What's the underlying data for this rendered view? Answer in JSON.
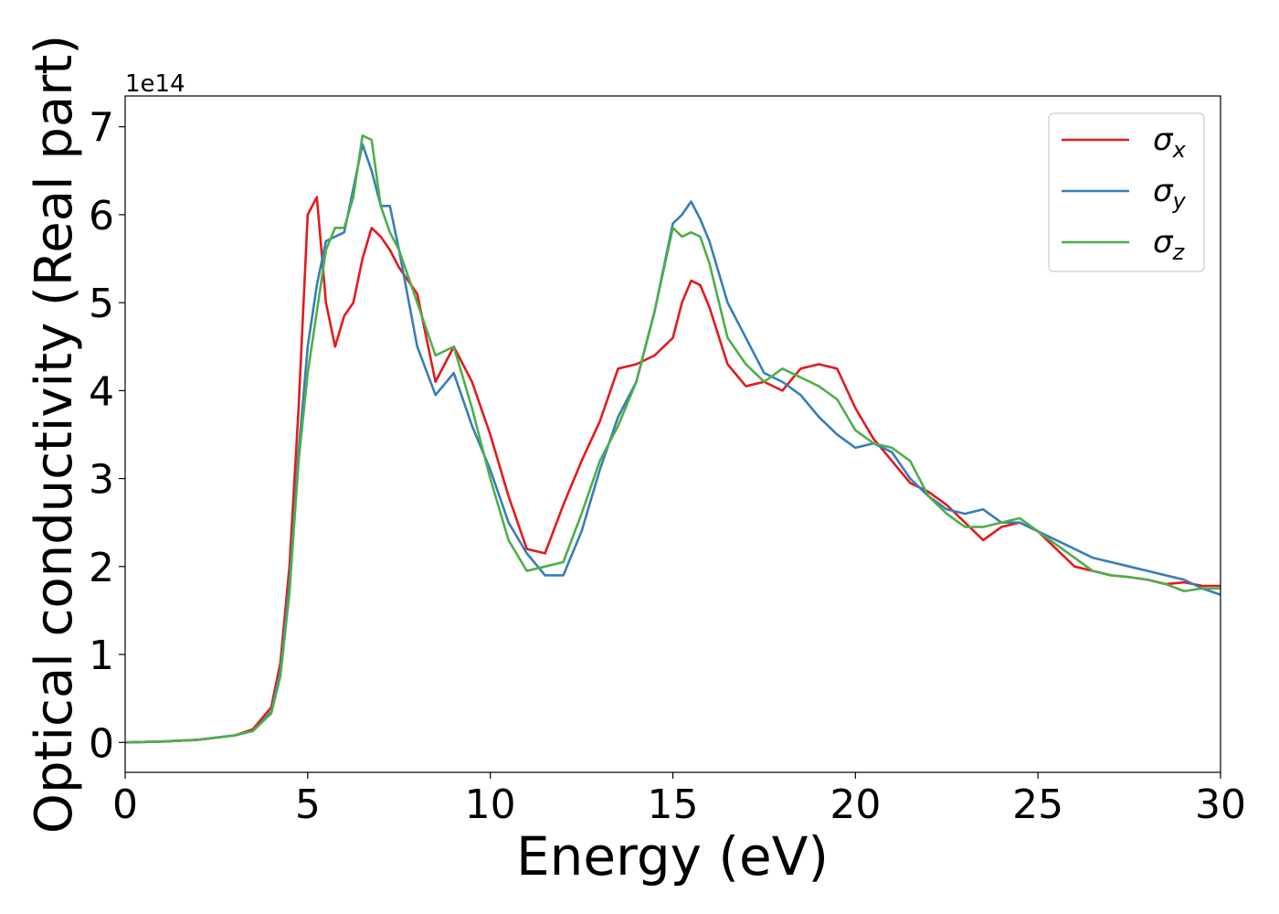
{
  "chart_data": {
    "type": "line",
    "xlabel": "Energy (eV)",
    "ylabel": "Optical conductivity (Real part)",
    "y_offset_label": "1e14",
    "legend": "upper right",
    "x": [
      0,
      1,
      2,
      3,
      3.5,
      4,
      4.25,
      4.5,
      4.75,
      5,
      5.25,
      5.5,
      5.75,
      6,
      6.25,
      6.5,
      6.75,
      7,
      7.25,
      7.5,
      8,
      8.5,
      9,
      9.5,
      10,
      10.5,
      11,
      11.5,
      12,
      12.5,
      13,
      13.5,
      14,
      14.5,
      15,
      15.25,
      15.5,
      15.75,
      16,
      16.5,
      17,
      17.5,
      18,
      18.5,
      19,
      19.5,
      20,
      20.5,
      21,
      21.5,
      22,
      22.5,
      23,
      23.5,
      24,
      24.5,
      25,
      25.5,
      26,
      26.5,
      27,
      27.5,
      28,
      28.5,
      29,
      29.5,
      30
    ],
    "series": [
      {
        "name": "σx",
        "color": "#e41a1c",
        "values": [
          0,
          0.01,
          0.03,
          0.08,
          0.15,
          0.4,
          0.9,
          2.0,
          3.8,
          6.0,
          6.2,
          5.0,
          4.5,
          4.85,
          5.0,
          5.5,
          5.85,
          5.75,
          5.6,
          5.4,
          5.1,
          4.1,
          4.5,
          4.1,
          3.5,
          2.8,
          2.2,
          2.15,
          2.7,
          3.2,
          3.65,
          4.25,
          4.3,
          4.4,
          4.6,
          5.0,
          5.25,
          5.2,
          4.95,
          4.3,
          4.05,
          4.1,
          4.0,
          4.25,
          4.3,
          4.25,
          3.8,
          3.45,
          3.2,
          2.95,
          2.85,
          2.7,
          2.5,
          2.3,
          2.45,
          2.5,
          2.4,
          2.2,
          2.0,
          1.95,
          1.9,
          1.88,
          1.85,
          1.8,
          1.82,
          1.78,
          1.78
        ]
      },
      {
        "name": "σy",
        "color": "#377eb8",
        "values": [
          0,
          0.01,
          0.03,
          0.08,
          0.13,
          0.35,
          0.8,
          1.8,
          3.3,
          4.5,
          5.2,
          5.7,
          5.75,
          5.8,
          6.3,
          6.8,
          6.5,
          6.1,
          6.1,
          5.6,
          4.5,
          3.95,
          4.2,
          3.6,
          3.1,
          2.5,
          2.15,
          1.9,
          1.9,
          2.4,
          3.1,
          3.7,
          4.1,
          4.9,
          5.9,
          6.0,
          6.15,
          5.95,
          5.7,
          5.0,
          4.6,
          4.2,
          4.1,
          3.95,
          3.7,
          3.5,
          3.35,
          3.4,
          3.3,
          3.0,
          2.8,
          2.65,
          2.6,
          2.65,
          2.5,
          2.5,
          2.4,
          2.3,
          2.2,
          2.1,
          2.05,
          2.0,
          1.95,
          1.9,
          1.85,
          1.75,
          1.68
        ]
      },
      {
        "name": "σz",
        "color": "#4daf4a",
        "values": [
          0,
          0.01,
          0.03,
          0.08,
          0.13,
          0.33,
          0.75,
          1.7,
          3.2,
          4.2,
          4.9,
          5.6,
          5.85,
          5.85,
          6.2,
          6.9,
          6.85,
          6.1,
          5.8,
          5.6,
          5.0,
          4.4,
          4.5,
          3.8,
          3.0,
          2.3,
          1.95,
          2.0,
          2.05,
          2.6,
          3.2,
          3.6,
          4.1,
          4.9,
          5.85,
          5.75,
          5.8,
          5.75,
          5.45,
          4.6,
          4.3,
          4.1,
          4.25,
          4.15,
          4.05,
          3.9,
          3.55,
          3.4,
          3.35,
          3.2,
          2.8,
          2.6,
          2.45,
          2.45,
          2.5,
          2.55,
          2.4,
          2.25,
          2.1,
          1.95,
          1.9,
          1.88,
          1.85,
          1.8,
          1.72,
          1.75,
          1.75
        ]
      }
    ],
    "xlim": [
      0,
      30
    ],
    "ylim": [
      -0.34,
      7.35
    ],
    "xticks": [
      0,
      5,
      10,
      15,
      20,
      25,
      30
    ],
    "yticks": [
      0,
      1,
      2,
      3,
      4,
      5,
      6,
      7
    ],
    "grid": false
  }
}
